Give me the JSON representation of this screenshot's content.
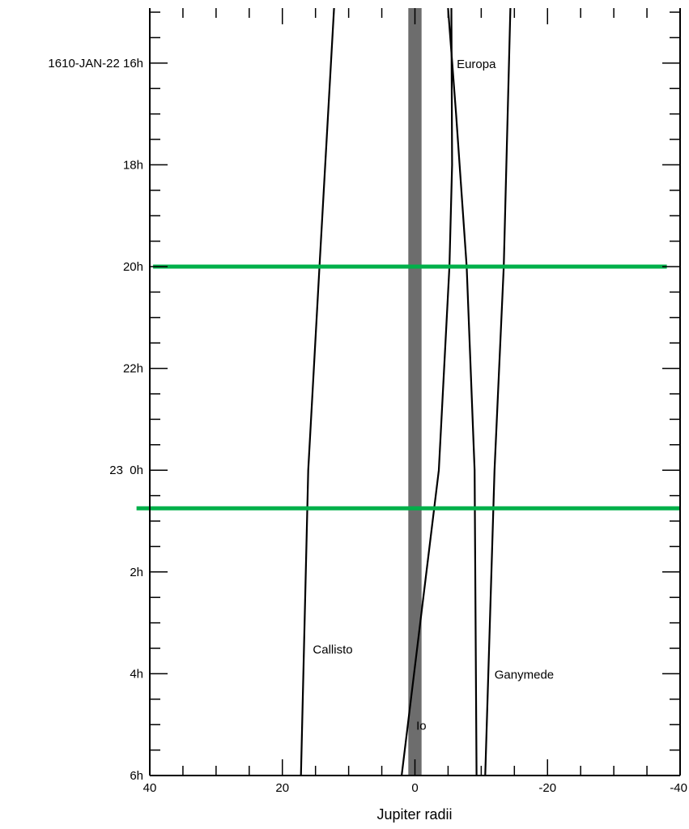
{
  "chart_data": {
    "type": "line",
    "title": "",
    "xlabel": "Jupiter radii",
    "ylabel": "",
    "x_range": [
      40,
      -40
    ],
    "y_range_hours": [
      14.92,
      30.0
    ],
    "x_major_ticks": [
      40,
      20,
      0,
      -20,
      -40
    ],
    "x_tick_labels": [
      "40",
      "20",
      "0",
      "-20",
      "-40"
    ],
    "x_minor_step": 5,
    "y_major_ticks": [
      {
        "hour": 16,
        "label": "1610-JAN-22 16h"
      },
      {
        "hour": 18,
        "label": "18h"
      },
      {
        "hour": 20,
        "label": "20h"
      },
      {
        "hour": 22,
        "label": "22h"
      },
      {
        "hour": 24,
        "label": "23  0h"
      },
      {
        "hour": 26,
        "label": "2h"
      },
      {
        "hour": 28,
        "label": "4h"
      },
      {
        "hour": 30,
        "label": "6h"
      }
    ],
    "y_minor_step_hours": 0.5,
    "grid": false,
    "jupiter_band": {
      "x_from": 1,
      "x_to": -1,
      "color": "#6d6d6d"
    },
    "series": [
      {
        "name": "Callisto",
        "color": "#000000",
        "points": [
          [
            12.2,
            14.92
          ],
          [
            14.4,
            20.0
          ],
          [
            16.1,
            24.0
          ],
          [
            17.2,
            30.0
          ]
        ],
        "label_at": {
          "x": 15.4,
          "hour": 27.6
        }
      },
      {
        "name": "Europa",
        "color": "#000000",
        "points": [
          [
            -5.0,
            14.92
          ],
          [
            -6.2,
            17.0
          ],
          [
            -7.8,
            20.0
          ],
          [
            -9.0,
            24.0
          ],
          [
            -9.3,
            30.0
          ]
        ],
        "label_at": {
          "x": -6.3,
          "hour": 16.1
        }
      },
      {
        "name": "Io",
        "color": "#000000",
        "points": [
          [
            -5.5,
            14.92
          ],
          [
            -5.6,
            18.0
          ],
          [
            -5.2,
            20.0
          ],
          [
            -3.6,
            24.0
          ],
          [
            2.0,
            30.0
          ]
        ],
        "label_at": {
          "x": -0.2,
          "hour": 29.1
        }
      },
      {
        "name": "Ganymede",
        "color": "#000000",
        "points": [
          [
            -14.4,
            14.92
          ],
          [
            -13.4,
            20.0
          ],
          [
            -12.0,
            24.0
          ],
          [
            -10.6,
            30.0
          ]
        ],
        "label_at": {
          "x": -12.0,
          "hour": 28.1
        }
      }
    ],
    "markers": [
      {
        "type": "hline",
        "color": "#00b04a",
        "hour": 20.0,
        "x_from": 39.5,
        "x_to": -38.0
      },
      {
        "type": "hline",
        "color": "#00b04a",
        "hour": 24.75,
        "x_from": 42.0,
        "x_to": -40.0
      }
    ]
  }
}
